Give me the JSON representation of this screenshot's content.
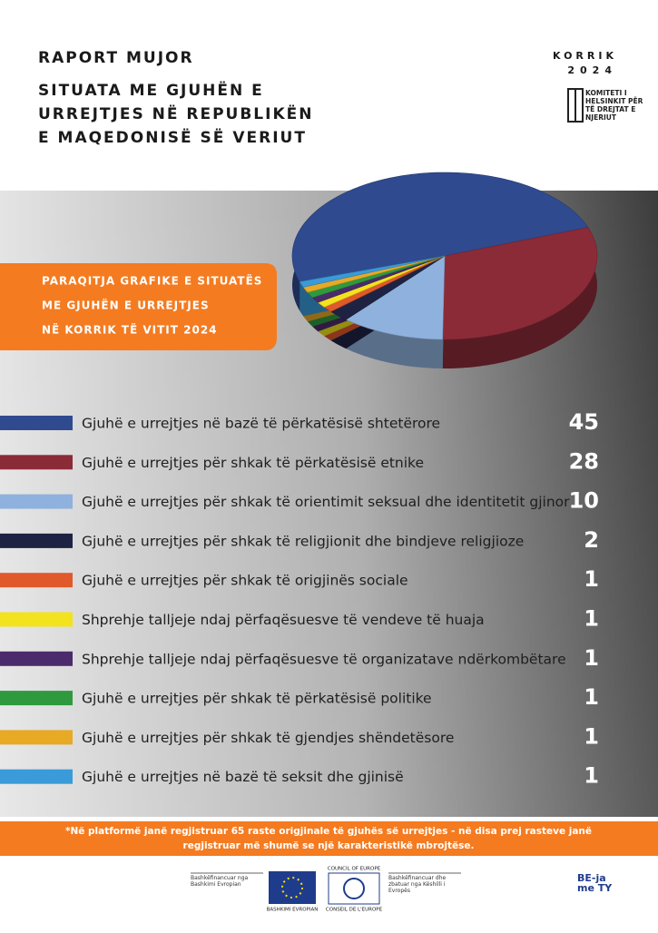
{
  "header": {
    "kicker": "RAPORT MUJOR",
    "title_lines": [
      "SITUATA ME GJUHËN E",
      "URREJTJES NË REPUBLIKËN",
      "E MAQEDONISË SË VERIUT"
    ],
    "month": "KORRIK",
    "year": "2024",
    "org_lines": [
      "KOMITETI I",
      "HELSINKIT PËR",
      "TË DREJTAT E",
      "NJERIUT"
    ]
  },
  "banner_lines": [
    "PARAQITJA GRAFIKE E SITUATËS",
    "ME GJUHËN E URREJTJES",
    "NË KORRIK TË VITIT 2024"
  ],
  "chart_data": {
    "type": "pie",
    "categories": [
      "Gjuhë e urrejtjes në bazë të përkatësisë shtetërore",
      "Gjuhë e urrejtjes për shkak të përkatësisë etnike",
      "Gjuhë e urrejtjes për shkak të orientimit seksual dhe identitetit gjinor",
      "Gjuhë e urrejtjes për shkak të religjionit dhe bindjeve religjioze",
      "Gjuhë e urrejtjes për shkak të origjinës sociale",
      "Shprehje talljeje ndaj përfaqësuesve të vendeve të huaja",
      "Shprehje talljeje ndaj përfaqësuesve të organizatave ndërkombëtare",
      "Gjuhë e urrejtjes për shkak të përkatësisë politike",
      "Gjuhë e urrejtjes për shkak të gjendjes shëndetësore",
      "Gjuhë e urrejtjes në bazë të seksit dhe gjinisë"
    ],
    "values": [
      45,
      28,
      10,
      2,
      1,
      1,
      1,
      1,
      1,
      1
    ],
    "colors": [
      "#2f4a8e",
      "#8c2b38",
      "#8fb1dd",
      "#1f2343",
      "#e0592b",
      "#f2e31e",
      "#4b2b6b",
      "#2f9a3d",
      "#e8a925",
      "#3a9bd8"
    ]
  },
  "footnote_lines": [
    "*Në platformë janë regjistruar 65 raste origjinale të gjuhës së urrejtjes - në disa prej rasteve janë",
    "regjistruar më shumë se një karakteristikë mbrojtëse."
  ],
  "logos": {
    "eu_caption": "Bashkëfinancuar nga Bashkimi Evropian",
    "eu_name": "BASHKIMI EVROPIAN",
    "coe_en": "COUNCIL OF EUROPE",
    "coe_fr": "CONSEIL DE L'EUROPE",
    "coe_caption": "Bashkëfinancuar dhe zbatuar nga Këshilli i Evropës",
    "be_logo": "BE-ja me TY"
  }
}
